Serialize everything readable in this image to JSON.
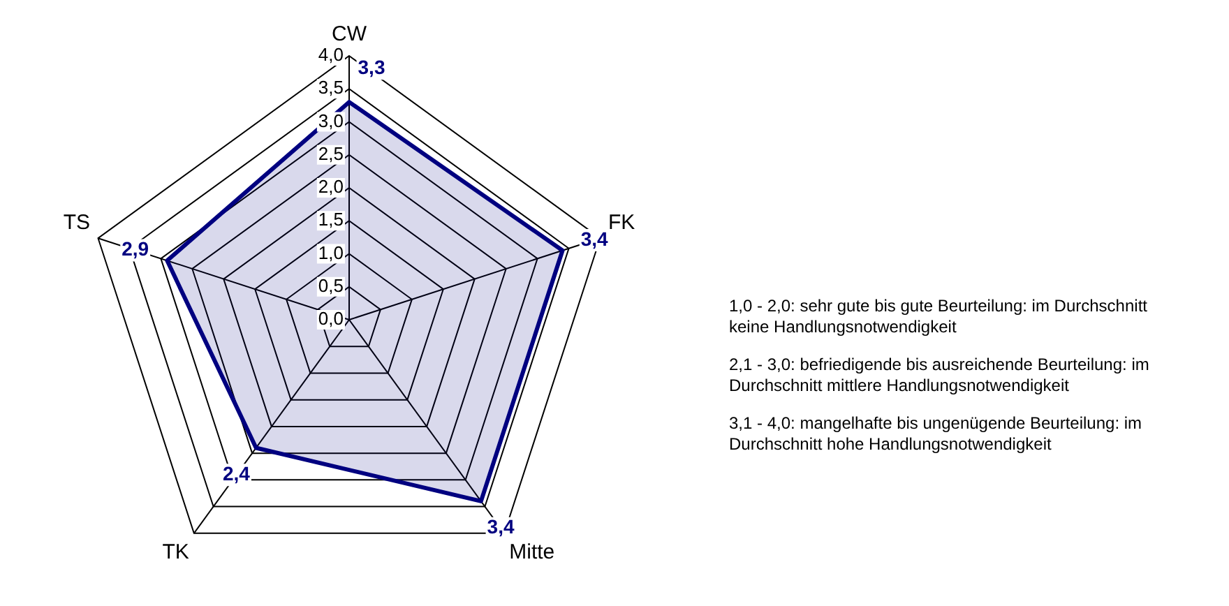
{
  "chart_data": {
    "type": "radar",
    "categories": [
      "CW",
      "FK",
      "Mitte",
      "TK",
      "TS"
    ],
    "series": [
      {
        "color": "#000080",
        "values": [
          3.3,
          3.4,
          3.4,
          2.4,
          2.9
        ],
        "value_labels": [
          "3,3",
          "3,4",
          "3,4",
          "2,4",
          "2,9"
        ]
      }
    ],
    "ylim": [
      0,
      4
    ],
    "yticks": [
      {
        "value": 0,
        "label": "0,0"
      },
      {
        "value": 0.5,
        "label": "0,5"
      },
      {
        "value": 1,
        "label": "1,0"
      },
      {
        "value": 1.5,
        "label": "1,5"
      },
      {
        "value": 2,
        "label": "2,0"
      },
      {
        "value": 2.5,
        "label": "2,5"
      },
      {
        "value": 3,
        "label": "3,0"
      },
      {
        "value": 3.5,
        "label": "3,5"
      },
      {
        "value": 4,
        "label": "4,0"
      }
    ],
    "grid": true,
    "legend": false,
    "marker": "none",
    "annotations": [
      "1,0 - 2,0: sehr gute bis gute Beurteilung: im Durchschnitt keine Handlungsnotwendigkeit",
      "2,1 - 3,0: befriedigende bis ausreichende Beurteilung: im Durchschnitt mittlere Handlungsnotwendigkeit",
      "3,1 - 4,0: mangelhafte bis ungenügende Beurteilung: im Durchschnitt hohe Handlungsnotwendigkeit"
    ]
  }
}
